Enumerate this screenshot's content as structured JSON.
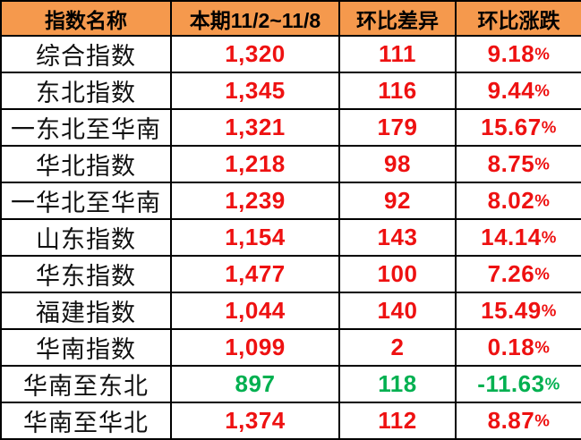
{
  "colors": {
    "header_bg": "#f5994d",
    "header_text": "#000000",
    "border": "#000000",
    "name_text": "#111111",
    "up": "#ee1111",
    "down": "#00b050"
  },
  "chart_data": {
    "type": "table",
    "columns": [
      "指数名称",
      "本期11/2~11/8",
      "环比差异",
      "环比涨跌"
    ],
    "rows": [
      {
        "name": "综合指数",
        "current": "1,320",
        "diff": 111,
        "change_pct": 9.18,
        "trend": "up"
      },
      {
        "name": "东北指数",
        "current": "1,345",
        "diff": 116,
        "change_pct": 9.44,
        "trend": "up"
      },
      {
        "name": "一东北至华南",
        "current": "1,321",
        "diff": 179,
        "change_pct": 15.67,
        "trend": "up"
      },
      {
        "name": "华北指数",
        "current": "1,218",
        "diff": 98,
        "change_pct": 8.75,
        "trend": "up"
      },
      {
        "name": "一华北至华南",
        "current": "1,239",
        "diff": 92,
        "change_pct": 8.02,
        "trend": "up"
      },
      {
        "name": "山东指数",
        "current": "1,154",
        "diff": 143,
        "change_pct": 14.14,
        "trend": "up"
      },
      {
        "name": "华东指数",
        "current": "1,477",
        "diff": 100,
        "change_pct": 7.26,
        "trend": "up"
      },
      {
        "name": "福建指数",
        "current": "1,044",
        "diff": 140,
        "change_pct": 15.49,
        "trend": "up"
      },
      {
        "name": "华南指数",
        "current": "1,099",
        "diff": 2,
        "change_pct": 0.18,
        "trend": "up"
      },
      {
        "name": "华南至东北",
        "current": "897",
        "diff": 118,
        "change_pct": -11.63,
        "trend": "down"
      },
      {
        "name": "华南至华北",
        "current": "1,374",
        "diff": 112,
        "change_pct": 8.87,
        "trend": "up"
      }
    ]
  }
}
